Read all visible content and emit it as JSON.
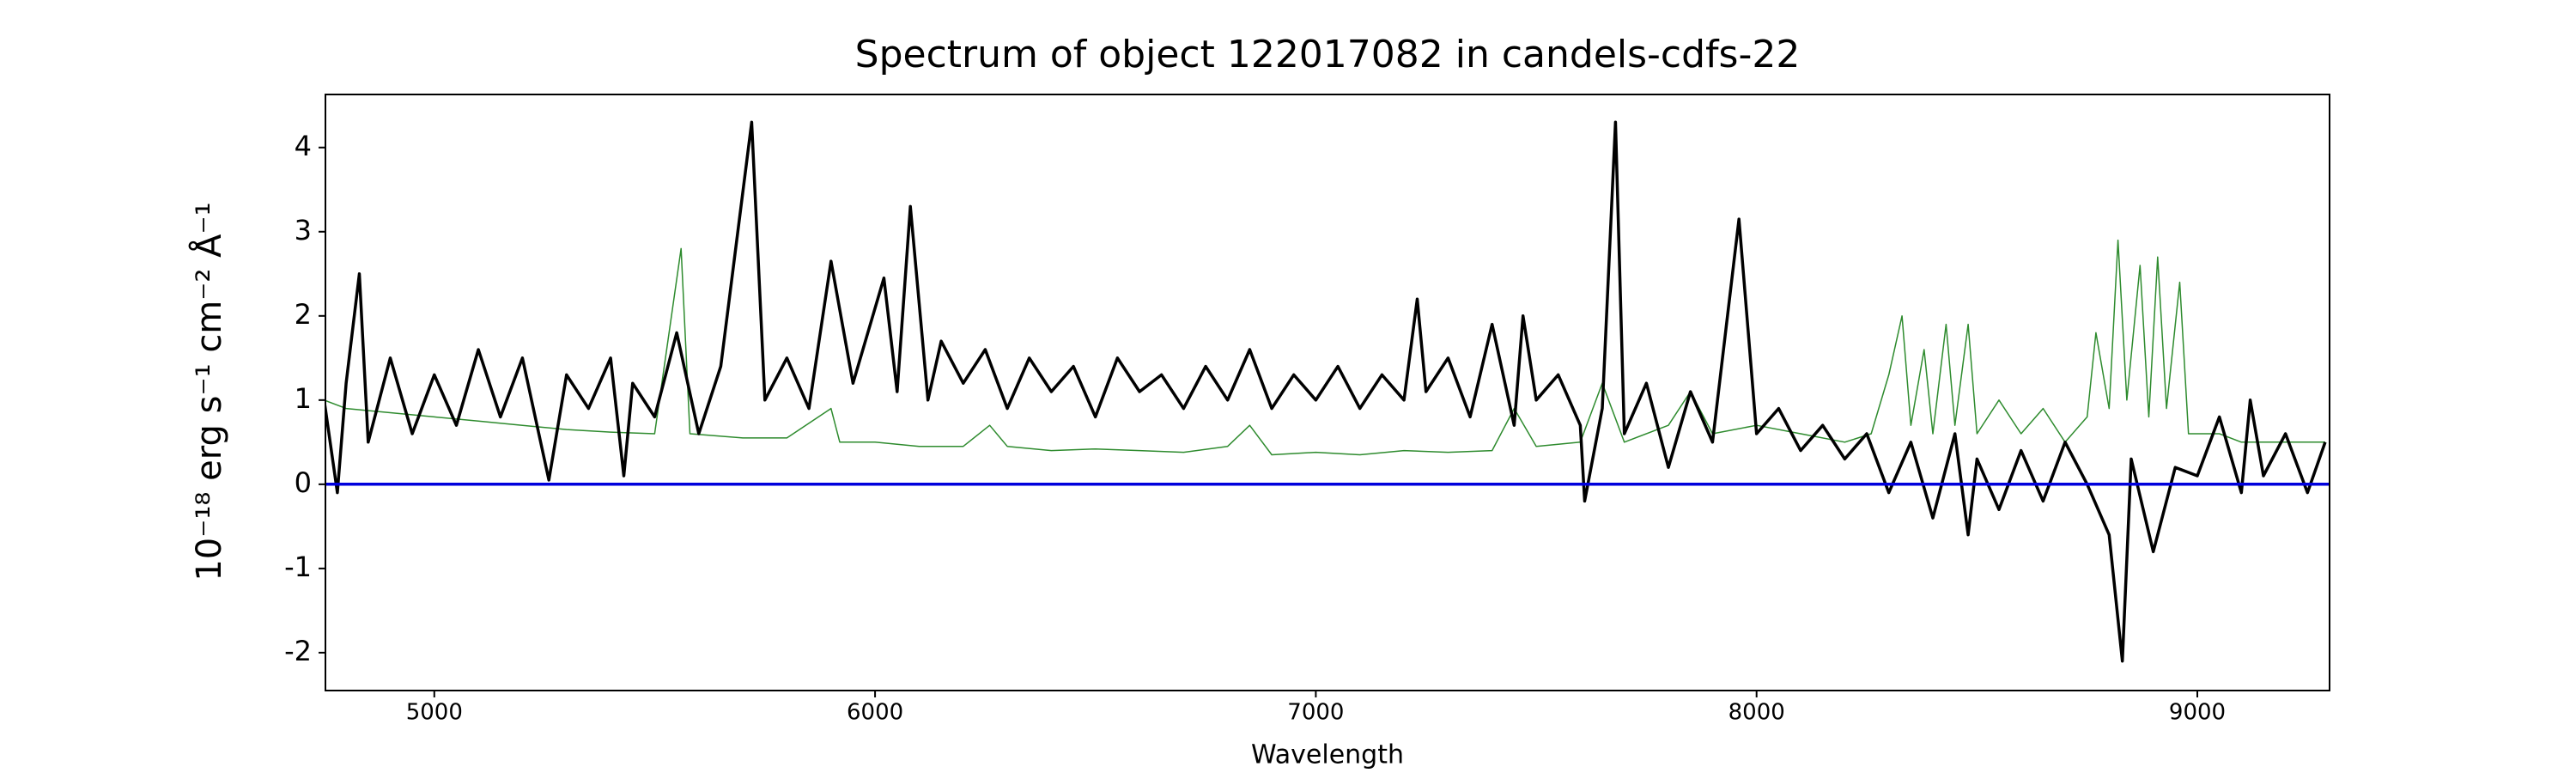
{
  "chart_data": {
    "type": "line",
    "title": "Spectrum of object 122017082 in candels-cdfs-22",
    "x_label": "Wavelength",
    "y_label": "10⁻¹⁸ erg s⁻¹ cm⁻² Å⁻¹",
    "xlim": [
      4753,
      9300
    ],
    "ylim": [
      -2.45,
      4.63
    ],
    "xticks": [
      5000,
      6000,
      7000,
      8000,
      9000
    ],
    "yticks": [
      -2,
      -1,
      0,
      1,
      2,
      3,
      4
    ],
    "series": [
      {
        "color": "#2e8b2e",
        "width": 1.5,
        "x": [
          4750,
          4800,
          4900,
          5000,
          5100,
          5200,
          5300,
          5400,
          5500,
          5560,
          5580,
          5700,
          5800,
          5900,
          5920,
          6000,
          6100,
          6200,
          6260,
          6300,
          6400,
          6500,
          6600,
          6700,
          6800,
          6850,
          6900,
          7000,
          7100,
          7200,
          7300,
          7400,
          7450,
          7500,
          7600,
          7650,
          7700,
          7800,
          7850,
          7900,
          8000,
          8100,
          8200,
          8260,
          8300,
          8330,
          8350,
          8380,
          8400,
          8430,
          8450,
          8480,
          8500,
          8550,
          8600,
          8650,
          8700,
          8750,
          8770,
          8800,
          8820,
          8840,
          8870,
          8890,
          8910,
          8930,
          8960,
          8980,
          9050,
          9100,
          9200,
          9290
        ],
        "values": [
          1.0,
          0.9,
          0.85,
          0.8,
          0.75,
          0.7,
          0.65,
          0.62,
          0.6,
          2.8,
          0.6,
          0.55,
          0.55,
          0.9,
          0.5,
          0.5,
          0.45,
          0.45,
          0.7,
          0.45,
          0.4,
          0.42,
          0.4,
          0.38,
          0.45,
          0.7,
          0.35,
          0.38,
          0.35,
          0.4,
          0.38,
          0.4,
          0.9,
          0.45,
          0.5,
          1.2,
          0.5,
          0.7,
          1.1,
          0.6,
          0.7,
          0.6,
          0.5,
          0.6,
          1.3,
          2.0,
          0.7,
          1.6,
          0.6,
          1.9,
          0.7,
          1.9,
          0.6,
          1.0,
          0.6,
          0.9,
          0.5,
          0.8,
          1.8,
          0.9,
          2.9,
          1.0,
          2.6,
          0.8,
          2.7,
          0.9,
          2.4,
          0.6,
          0.6,
          0.5,
          0.5,
          0.5
        ]
      },
      {
        "color": "#000000",
        "width": 3.5,
        "x": [
          4750,
          4780,
          4800,
          4830,
          4850,
          4900,
          4950,
          5000,
          5050,
          5100,
          5150,
          5200,
          5260,
          5300,
          5350,
          5400,
          5430,
          5450,
          5500,
          5550,
          5600,
          5650,
          5720,
          5750,
          5800,
          5850,
          5900,
          5950,
          6020,
          6050,
          6080,
          6120,
          6150,
          6200,
          6250,
          6300,
          6350,
          6400,
          6450,
          6500,
          6550,
          6600,
          6650,
          6700,
          6750,
          6800,
          6850,
          6900,
          6950,
          7000,
          7050,
          7100,
          7150,
          7200,
          7230,
          7250,
          7300,
          7350,
          7400,
          7450,
          7470,
          7500,
          7550,
          7600,
          7610,
          7650,
          7680,
          7700,
          7750,
          7800,
          7850,
          7900,
          7960,
          8000,
          8050,
          8100,
          8150,
          8200,
          8250,
          8300,
          8350,
          8400,
          8450,
          8480,
          8500,
          8550,
          8600,
          8650,
          8700,
          8750,
          8800,
          8830,
          8850,
          8900,
          8950,
          9000,
          9050,
          9100,
          9120,
          9150,
          9200,
          9250,
          9290
        ],
        "values": [
          1.0,
          -0.1,
          1.2,
          2.5,
          0.5,
          1.5,
          0.6,
          1.3,
          0.7,
          1.6,
          0.8,
          1.5,
          0.05,
          1.3,
          0.9,
          1.5,
          0.1,
          1.2,
          0.8,
          1.8,
          0.6,
          1.4,
          4.3,
          1.0,
          1.5,
          0.9,
          2.65,
          1.2,
          2.45,
          1.1,
          3.3,
          1.0,
          1.7,
          1.2,
          1.6,
          0.9,
          1.5,
          1.1,
          1.4,
          0.8,
          1.5,
          1.1,
          1.3,
          0.9,
          1.4,
          1.0,
          1.6,
          0.9,
          1.3,
          1.0,
          1.4,
          0.9,
          1.3,
          1.0,
          2.2,
          1.1,
          1.5,
          0.8,
          1.9,
          0.7,
          2.0,
          1.0,
          1.3,
          0.7,
          -0.2,
          0.9,
          4.3,
          0.6,
          1.2,
          0.2,
          1.1,
          0.5,
          3.15,
          0.6,
          0.9,
          0.4,
          0.7,
          0.3,
          0.6,
          -0.1,
          0.5,
          -0.4,
          0.6,
          -0.6,
          0.3,
          -0.3,
          0.4,
          -0.2,
          0.5,
          0.0,
          -0.6,
          -2.1,
          0.3,
          -0.8,
          0.2,
          0.1,
          0.8,
          -0.1,
          1.0,
          0.1,
          0.6,
          -0.1,
          0.5
        ]
      },
      {
        "color": "#0000dd",
        "width": 3.5,
        "x": [
          4753,
          9300
        ],
        "values": [
          0,
          0
        ]
      }
    ]
  }
}
